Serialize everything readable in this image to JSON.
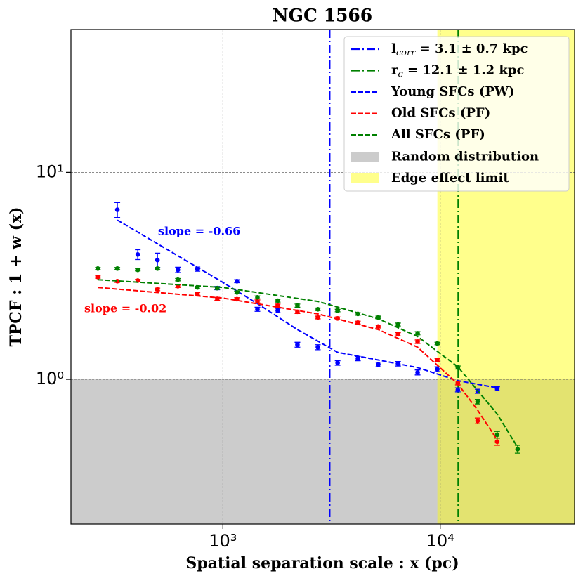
{
  "chart_data": {
    "type": "scatter",
    "title": "NGC 1566",
    "xlabel": "Spatial separation scale : x (pc)",
    "ylabel": "TPCF : 1 + w (x)",
    "xscale": "log",
    "yscale": "log",
    "xlim": [
      200,
      41500
    ],
    "ylim": [
      0.2,
      49
    ],
    "xticks": [
      {
        "value": 1000,
        "label": "10³"
      },
      {
        "value": 10000,
        "label": "10⁴"
      }
    ],
    "yticks": [
      {
        "value": 1,
        "label": "10⁰"
      },
      {
        "value": 10,
        "label": "10¹"
      }
    ],
    "grid": true,
    "legend_loc": "upper right",
    "series": [
      {
        "color": "#0000ff",
        "x": [
          327,
          406,
          500,
          621,
          764,
          942,
          1161,
          1442,
          1788,
          2203,
          2735,
          3372,
          4180,
          5190,
          6397,
          7870,
          9700,
          12050,
          14860,
          18280
        ],
        "values": [
          6.6,
          4.01,
          3.77,
          3.38,
          3.41,
          2.76,
          2.98,
          2.18,
          2.15,
          1.47,
          1.43,
          1.2,
          1.26,
          1.18,
          1.19,
          1.08,
          1.12,
          0.89,
          0.876,
          0.9
        ],
        "errors": [
          0.55,
          0.22,
          0.3,
          0.1,
          0.08,
          0.05,
          0.05,
          0.05,
          0.05,
          0.04,
          0.04,
          0.03,
          0.03,
          0.03,
          0.03,
          0.03,
          0.03,
          0.02,
          0.02,
          0.02
        ],
        "fit": {
          "name": "Young SFCs (PW)",
          "x": [
            327,
            1000,
            1442,
            2203,
            3372,
            5190,
            7870,
            12050,
            18280
          ],
          "values": [
            5.88,
            2.94,
            2.32,
            1.74,
            1.35,
            1.24,
            1.14,
            0.985,
            0.91
          ]
        }
      },
      {
        "color": "#ff0000",
        "x": [
          266,
          327,
          406,
          500,
          621,
          764,
          942,
          1161,
          1442,
          1788,
          2203,
          2735,
          3372,
          4180,
          5190,
          6397,
          7870,
          9700,
          12050,
          14860,
          18280
        ],
        "values": [
          3.12,
          2.98,
          3.0,
          2.72,
          2.82,
          2.59,
          2.45,
          2.44,
          2.38,
          2.27,
          2.12,
          1.99,
          1.97,
          1.88,
          1.8,
          1.65,
          1.52,
          1.24,
          0.96,
          0.63,
          0.5
        ],
        "errors": [
          0.04,
          0.04,
          0.04,
          0.04,
          0.04,
          0.04,
          0.04,
          0.04,
          0.04,
          0.04,
          0.04,
          0.03,
          0.03,
          0.03,
          0.03,
          0.03,
          0.03,
          0.02,
          0.02,
          0.02,
          0.02
        ],
        "fit": {
          "name": "Old SFCs (PF)",
          "x": [
            266,
            1000,
            2735,
            5190,
            7870,
            12050,
            14860,
            18280
          ],
          "values": [
            2.78,
            2.47,
            2.07,
            1.74,
            1.43,
            0.95,
            0.71,
            0.51
          ]
        }
      },
      {
        "color": "#008000",
        "x": [
          266,
          327,
          406,
          500,
          621,
          764,
          942,
          1161,
          1442,
          1788,
          2203,
          2735,
          3372,
          4180,
          5190,
          6397,
          7870,
          9700,
          12050,
          14860,
          18280,
          22700
        ],
        "values": [
          3.43,
          3.43,
          3.38,
          3.43,
          3.03,
          2.78,
          2.76,
          2.63,
          2.49,
          2.4,
          2.27,
          2.18,
          2.15,
          2.07,
          1.99,
          1.84,
          1.67,
          1.49,
          1.14,
          0.78,
          0.54,
          0.46
        ],
        "errors": [
          0.04,
          0.04,
          0.04,
          0.04,
          0.04,
          0.04,
          0.04,
          0.04,
          0.04,
          0.04,
          0.04,
          0.03,
          0.03,
          0.03,
          0.03,
          0.03,
          0.03,
          0.02,
          0.02,
          0.02,
          0.02,
          0.02
        ],
        "fit": {
          "name": "All SFCs (PF)",
          "x": [
            266,
            1000,
            2735,
            5190,
            7870,
            12050,
            18280,
            22700
          ],
          "values": [
            3.03,
            2.78,
            2.38,
            1.96,
            1.61,
            1.15,
            0.68,
            0.47
          ]
        }
      }
    ],
    "vlines": [
      {
        "value": 3100,
        "color": "#0000ff",
        "label": {
          "base": "l",
          "sub": "corr",
          "rest": " = 3.1 ± 0.7 kpc"
        }
      },
      {
        "value": 12100,
        "color": "#008000",
        "label": {
          "base": "r",
          "sub": "c",
          "rest": " = 12.1 ± 1.2 kpc"
        }
      }
    ],
    "spans": [
      {
        "name": "Random distribution",
        "color": "#cccccc",
        "ymax": 1
      },
      {
        "name": "Edge effect limit",
        "color": "#ffff00",
        "xmin": 9700
      }
    ],
    "annotations": [
      {
        "text": "slope = -0.66",
        "color": "#0000ff"
      },
      {
        "text": "slope = -0.02",
        "color": "#ff0000"
      }
    ]
  }
}
